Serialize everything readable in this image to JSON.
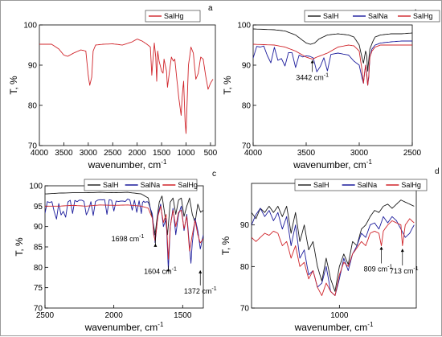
{
  "colors": {
    "SalH": "#1a1a1a",
    "SalNa": "#1c1c9c",
    "SalHg": "#d0242a"
  },
  "chart_data": [
    {
      "panel": "a",
      "type": "line",
      "xlabel": "wavenumber, cm",
      "xlabel_sup": "-1",
      "ylabel": "T, %",
      "xlim": [
        4000,
        400
      ],
      "ylim": [
        70,
        100
      ],
      "xticks": [
        4000,
        3500,
        3000,
        2500,
        2000,
        1500,
        1000,
        500
      ],
      "yticks": [
        70,
        80,
        90,
        100
      ],
      "legend": {
        "placement": "top-right"
      },
      "series": [
        {
          "name": "SalHg",
          "color": "#d0242a",
          "x": [
            4000,
            3750,
            3600,
            3500,
            3420,
            3300,
            3150,
            3050,
            3000,
            2970,
            2930,
            2900,
            2850,
            2700,
            2500,
            2300,
            2100,
            2000,
            1900,
            1800,
            1730,
            1700,
            1650,
            1620,
            1600,
            1580,
            1550,
            1500,
            1470,
            1450,
            1400,
            1380,
            1300,
            1260,
            1230,
            1200,
            1150,
            1100,
            1080,
            1050,
            1020,
            1000,
            980,
            950,
            900,
            850,
            820,
            800,
            750,
            700,
            650,
            600,
            550,
            500,
            450
          ],
          "y": [
            95.2,
            95.2,
            94.0,
            92.5,
            92.2,
            93.0,
            93.8,
            93.5,
            87.5,
            85.0,
            87.0,
            93.5,
            95.0,
            95.2,
            95.3,
            95.0,
            95.8,
            96.5,
            96.0,
            95.2,
            94.5,
            87.5,
            95.5,
            92.0,
            86.0,
            93.5,
            91.0,
            88.5,
            88.0,
            91.5,
            88.5,
            84.5,
            92.0,
            91.0,
            91.5,
            88.0,
            82.0,
            77.5,
            82.0,
            86.0,
            76.0,
            73.0,
            80.0,
            90.0,
            94.5,
            93.0,
            89.0,
            86.5,
            88.0,
            92.0,
            91.5,
            87.5,
            84.0,
            85.5,
            86.5
          ]
        }
      ]
    },
    {
      "panel": "b",
      "type": "line",
      "xlabel": "wavenumber, cm",
      "xlabel_sup": "-1",
      "ylabel": "T, %",
      "xlim": [
        4000,
        2500
      ],
      "ylim": [
        70,
        100
      ],
      "xticks": [
        4000,
        3500,
        3000,
        2500
      ],
      "yticks": [
        70,
        80,
        90,
        100
      ],
      "legend": {
        "placement": "top"
      },
      "annotations": [
        {
          "text": "3442 cm",
          "sup": "-1",
          "x": 3442,
          "y": 91.5
        }
      ],
      "series": [
        {
          "name": "SalH",
          "color": "#1a1a1a",
          "x": [
            4000,
            3800,
            3700,
            3600,
            3500,
            3460,
            3420,
            3380,
            3300,
            3200,
            3100,
            3050,
            3000,
            2975,
            2960,
            2950,
            2940,
            2930,
            2920,
            2900,
            2870,
            2850,
            2800,
            2700,
            2600,
            2500
          ],
          "y": [
            99.0,
            98.8,
            98.5,
            97.5,
            95.5,
            95.2,
            95.5,
            96.5,
            97.5,
            97.8,
            97.5,
            97.0,
            95.0,
            92.0,
            90.5,
            92.0,
            93.5,
            92.5,
            88.5,
            94.0,
            96.0,
            97.0,
            97.5,
            97.8,
            97.8,
            98.0
          ]
        },
        {
          "name": "SalNa",
          "color": "#1c1c9c",
          "x": [
            4000,
            3800,
            3600,
            3400,
            3200,
            3100,
            3050,
            3000,
            2975,
            2960,
            2950,
            2940,
            2930,
            2920,
            2910,
            2900,
            2880,
            2850,
            2800,
            2700,
            2600,
            2500
          ],
          "y": [
            95.0,
            95.0,
            93.0,
            92.0,
            93.0,
            92.5,
            91.0,
            90.0,
            87.0,
            85.5,
            88.0,
            90.0,
            88.0,
            85.0,
            87.0,
            92.0,
            94.0,
            95.0,
            95.5,
            95.8,
            96.0,
            96.0
          ],
          "noisy_region": [
            4000,
            3300
          ]
        },
        {
          "name": "SalHg",
          "color": "#d0242a",
          "x": [
            4000,
            3800,
            3700,
            3600,
            3500,
            3442,
            3400,
            3300,
            3200,
            3100,
            3050,
            3000,
            2975,
            2960,
            2950,
            2940,
            2930,
            2920,
            2910,
            2900,
            2880,
            2850,
            2800,
            2700,
            2600,
            2500
          ],
          "y": [
            95.2,
            95.0,
            94.5,
            93.5,
            92.0,
            91.5,
            92.0,
            93.0,
            94.5,
            95.0,
            94.8,
            93.5,
            89.0,
            85.5,
            88.0,
            90.0,
            87.5,
            85.0,
            87.5,
            92.0,
            93.5,
            94.5,
            95.0,
            95.0,
            95.0,
            95.0
          ]
        }
      ]
    },
    {
      "panel": "c",
      "type": "line",
      "xlabel": "wavenumber, cm",
      "xlabel_sup": "-1",
      "ylabel": "T, %",
      "xlim": [
        2500,
        1350
      ],
      "ylim": [
        70,
        100
      ],
      "xticks": [
        2500,
        2000,
        1500
      ],
      "yticks": [
        70,
        75,
        80,
        85,
        90,
        95,
        100
      ],
      "legend": {
        "placement": "top"
      },
      "annotations": [
        {
          "text": "1698 cm",
          "sup": "-1",
          "x": 1698,
          "y": 86.0
        },
        {
          "text": "1604 cm",
          "sup": "-1",
          "x": 1604,
          "y": 80.0
        },
        {
          "text": "1372 cm",
          "sup": "-1",
          "x": 1372,
          "y": 79.5
        }
      ],
      "series": [
        {
          "name": "SalH",
          "color": "#1a1a1a",
          "x": [
            2500,
            2400,
            2300,
            2200,
            2100,
            2000,
            1900,
            1800,
            1750,
            1720,
            1700,
            1690,
            1670,
            1650,
            1630,
            1610,
            1590,
            1570,
            1550,
            1530,
            1510,
            1490,
            1470,
            1450,
            1430,
            1410,
            1390,
            1370,
            1350
          ],
          "y": [
            98.0,
            98.2,
            98.3,
            98.3,
            98.4,
            98.3,
            98.4,
            98.0,
            97.0,
            92.0,
            88.0,
            91.0,
            96.0,
            97.5,
            93.0,
            88.0,
            96.0,
            97.0,
            93.0,
            96.5,
            97.0,
            92.5,
            95.0,
            97.0,
            93.0,
            91.0,
            95.5,
            93.5,
            94.0
          ]
        },
        {
          "name": "SalNa",
          "color": "#1c1c9c",
          "x": [
            2500,
            2400,
            2300,
            2200,
            2100,
            2000,
            1900,
            1800,
            1750,
            1720,
            1710,
            1700,
            1680,
            1660,
            1640,
            1620,
            1604,
            1590,
            1570,
            1550,
            1530,
            1510,
            1490,
            1470,
            1450,
            1440,
            1430,
            1410,
            1390,
            1372,
            1350
          ],
          "y": [
            96.5,
            96.2,
            96.8,
            96.5,
            96.8,
            96.5,
            96.8,
            96.5,
            96.0,
            93.0,
            89.0,
            86.0,
            93.0,
            95.5,
            90.0,
            92.0,
            79.5,
            90.0,
            94.5,
            88.0,
            93.0,
            95.0,
            89.0,
            93.0,
            85.0,
            81.0,
            86.0,
            92.0,
            89.0,
            84.5,
            88.0
          ],
          "noisy_region": [
            2500,
            1760
          ]
        },
        {
          "name": "SalHg",
          "color": "#d0242a",
          "x": [
            2500,
            2400,
            2300,
            2200,
            2100,
            2000,
            1900,
            1800,
            1750,
            1720,
            1710,
            1700,
            1680,
            1660,
            1640,
            1620,
            1604,
            1590,
            1570,
            1550,
            1530,
            1510,
            1490,
            1470,
            1450,
            1430,
            1410,
            1390,
            1372,
            1350
          ],
          "y": [
            95.0,
            95.0,
            95.2,
            95.0,
            95.3,
            95.2,
            95.3,
            95.0,
            94.5,
            92.0,
            88.0,
            86.5,
            92.5,
            95.0,
            91.0,
            93.0,
            82.0,
            90.0,
            94.0,
            90.0,
            93.5,
            94.0,
            89.5,
            92.5,
            84.0,
            88.0,
            91.5,
            88.0,
            86.0,
            87.0
          ]
        }
      ]
    },
    {
      "panel": "d",
      "type": "line",
      "xlabel": "wavenumber, cm",
      "xlabel_sup": "-1",
      "ylabel": "T, %",
      "xlim": [
        1400,
        650
      ],
      "ylim": [
        70,
        100
      ],
      "xticks": [
        1000
      ],
      "yticks": [
        70,
        80,
        90
      ],
      "legend": {
        "placement": "top"
      },
      "annotations": [
        {
          "text": "809 cm",
          "sup": "-1",
          "x": 809,
          "y": 85.0
        },
        {
          "text": "713 cm",
          "sup": "-1",
          "x": 713,
          "y": 84.5
        }
      ],
      "series": [
        {
          "name": "SalH",
          "color": "#1a1a1a",
          "x": [
            1400,
            1380,
            1360,
            1340,
            1320,
            1300,
            1280,
            1260,
            1240,
            1220,
            1200,
            1180,
            1160,
            1140,
            1120,
            1100,
            1080,
            1060,
            1040,
            1020,
            1000,
            980,
            960,
            940,
            920,
            900,
            880,
            860,
            840,
            820,
            800,
            780,
            760,
            740,
            720,
            700,
            680,
            660
          ],
          "y": [
            93.0,
            91.5,
            94.0,
            93.0,
            94.5,
            93.0,
            94.5,
            92.0,
            94.5,
            88.0,
            93.0,
            86.0,
            90.0,
            84.0,
            86.0,
            80.0,
            76.5,
            82.0,
            77.0,
            74.0,
            80.0,
            83.0,
            80.5,
            86.0,
            85.0,
            89.0,
            90.0,
            92.0,
            93.5,
            93.0,
            94.5,
            95.0,
            94.0,
            95.0,
            96.0,
            95.5,
            95.0,
            94.5
          ]
        },
        {
          "name": "SalNa",
          "color": "#1c1c9c",
          "x": [
            1400,
            1380,
            1360,
            1340,
            1320,
            1300,
            1280,
            1260,
            1240,
            1220,
            1200,
            1180,
            1160,
            1140,
            1120,
            1100,
            1080,
            1060,
            1040,
            1020,
            1000,
            980,
            960,
            940,
            920,
            900,
            880,
            860,
            840,
            820,
            800,
            780,
            760,
            740,
            720,
            700,
            680,
            660
          ],
          "y": [
            90.0,
            92.5,
            94.0,
            92.0,
            93.5,
            91.0,
            93.0,
            89.0,
            92.0,
            85.0,
            90.0,
            82.0,
            84.0,
            78.0,
            79.0,
            75.0,
            76.0,
            80.0,
            74.0,
            73.0,
            77.0,
            82.0,
            79.0,
            83.0,
            85.0,
            88.0,
            87.0,
            90.0,
            90.5,
            89.0,
            92.0,
            90.5,
            92.0,
            91.0,
            89.0,
            87.0,
            88.0,
            90.0
          ]
        },
        {
          "name": "SalHg",
          "color": "#d0242a",
          "x": [
            1400,
            1380,
            1360,
            1340,
            1320,
            1300,
            1280,
            1260,
            1240,
            1220,
            1200,
            1180,
            1160,
            1140,
            1120,
            1100,
            1080,
            1060,
            1040,
            1020,
            1000,
            980,
            960,
            940,
            920,
            900,
            880,
            860,
            840,
            820,
            809,
            800,
            780,
            760,
            740,
            720,
            713,
            700,
            680,
            660
          ],
          "y": [
            87.0,
            86.0,
            87.0,
            88.0,
            87.5,
            88.5,
            88.0,
            85.0,
            86.0,
            82.0,
            85.0,
            80.0,
            81.0,
            77.0,
            79.0,
            75.0,
            73.0,
            76.0,
            74.0,
            73.0,
            78.0,
            81.0,
            80.0,
            83.0,
            84.5,
            86.0,
            85.0,
            88.0,
            88.5,
            88.0,
            85.0,
            88.5,
            90.0,
            91.0,
            90.5,
            90.0,
            85.0,
            90.0,
            91.5,
            90.5
          ]
        }
      ]
    }
  ]
}
